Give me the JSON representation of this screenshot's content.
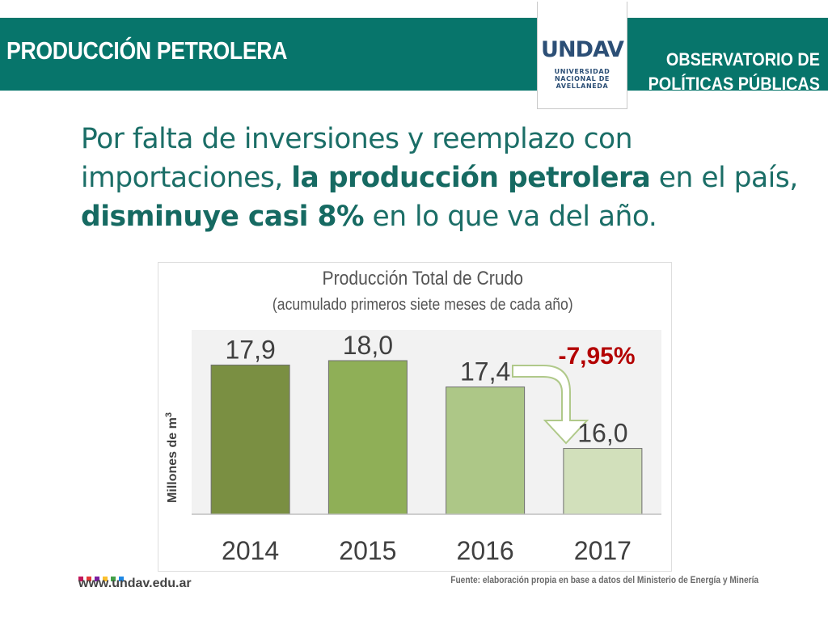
{
  "header": {
    "title": "PRODUCCIÓN PETROLERA",
    "logo_word": "UNDAV",
    "logo_lines": [
      "UNIVERSIDAD",
      "NACIONAL DE",
      "AVELLANEDA"
    ],
    "observatory_line1": "OBSERVATORIO DE",
    "observatory_line2": "POLÍTICAS PÚBLICAS"
  },
  "headline": {
    "part1": "Por falta de inversiones y reemplazo con importaciones, ",
    "bold1": "la producción petrolera",
    "part2": " en el país, ",
    "bold2": "disminuye casi 8%",
    "part3": " en lo que va del año."
  },
  "chart_data": {
    "type": "bar",
    "title": "Producción Total de Crudo",
    "subtitle": "(acumulado primeros siete meses de cada año)",
    "ylabel": "Millones de m",
    "ylabel_superscript": "3",
    "categories": [
      "2014",
      "2015",
      "2016",
      "2017"
    ],
    "values": [
      17.9,
      18.0,
      17.4,
      16.0
    ],
    "value_labels": [
      "17,9",
      "18,0",
      "17,4",
      "16,0"
    ],
    "colors": [
      "#7a8f42",
      "#8faf57",
      "#adc787",
      "#d2e0bb"
    ],
    "ylim_visible": [
      14.5,
      18.0
    ],
    "grid": false,
    "annotation": {
      "text": "-7,95%",
      "color": "#b30000",
      "from_category": "2016",
      "to_category": "2017"
    }
  },
  "footer": {
    "website": "www.undav.edu.ar",
    "source": "Fuente: elaboración propia en base a datos del Ministerio de Energía y Minería",
    "square_colors": [
      "#c2185b",
      "#e53935",
      "#7b1fa2",
      "#fbc02d",
      "#43a047",
      "#1e88e5"
    ]
  }
}
